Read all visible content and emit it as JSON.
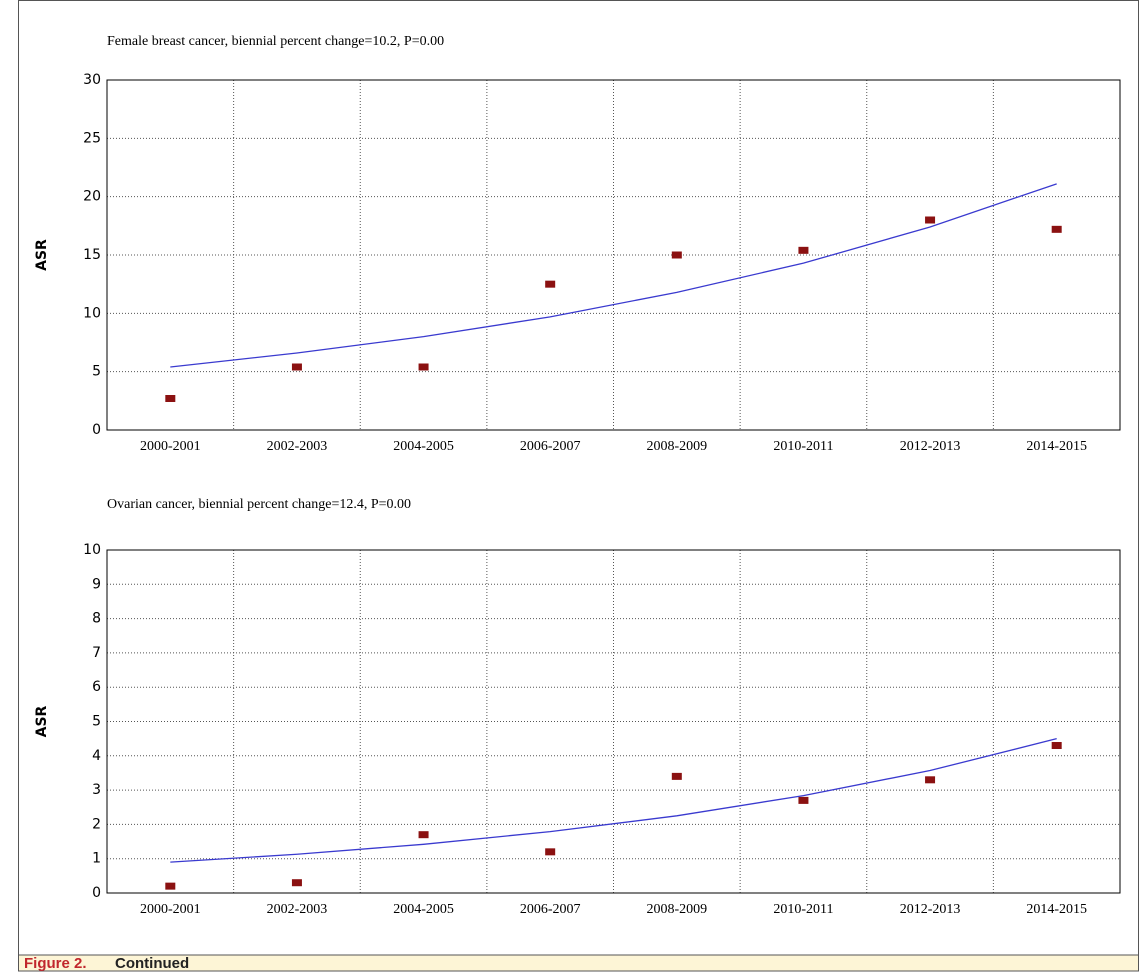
{
  "chart_data": [
    {
      "type": "scatter",
      "title": "Female breast cancer, biennial percent change=10.2, P=0.00",
      "y_label": "ASR",
      "categories": [
        "2000-2001",
        "2002-2003",
        "2004-2005",
        "2006-2007",
        "2008-2009",
        "2010-2011",
        "2012-2013",
        "2014-2015"
      ],
      "series": [
        {
          "mode": "markers",
          "color": "#8b1111",
          "values": [
            2.7,
            5.4,
            5.4,
            12.5,
            15.0,
            15.4,
            18.0,
            17.2
          ]
        },
        {
          "mode": "line",
          "color": "#3a3acf",
          "values": [
            5.4,
            6.6,
            8.0,
            9.7,
            11.8,
            14.3,
            17.4,
            21.1
          ]
        }
      ],
      "ylim": [
        0,
        30
      ],
      "yticks": [
        0,
        5,
        10,
        15,
        20,
        25,
        30
      ],
      "grid": true
    },
    {
      "type": "scatter",
      "title": "Ovarian cancer, biennial percent change=12.4, P=0.00",
      "y_label": "ASR",
      "categories": [
        "2000-2001",
        "2002-2003",
        "2004-2005",
        "2006-2007",
        "2008-2009",
        "2010-2011",
        "2012-2013",
        "2014-2015"
      ],
      "series": [
        {
          "mode": "markers",
          "color": "#8b1111",
          "values": [
            0.2,
            0.3,
            1.7,
            1.2,
            3.4,
            2.7,
            3.3,
            4.3
          ]
        },
        {
          "mode": "line",
          "color": "#3a3acf",
          "values": [
            0.9,
            1.13,
            1.42,
            1.79,
            2.25,
            2.84,
            3.57,
            4.5
          ]
        }
      ],
      "ylim": [
        0,
        10
      ],
      "yticks": [
        0,
        1,
        2,
        3,
        4,
        5,
        6,
        7,
        8,
        9,
        10
      ],
      "grid": true
    }
  ],
  "caption": {
    "label": "Figure 2.",
    "text": "Continued"
  }
}
